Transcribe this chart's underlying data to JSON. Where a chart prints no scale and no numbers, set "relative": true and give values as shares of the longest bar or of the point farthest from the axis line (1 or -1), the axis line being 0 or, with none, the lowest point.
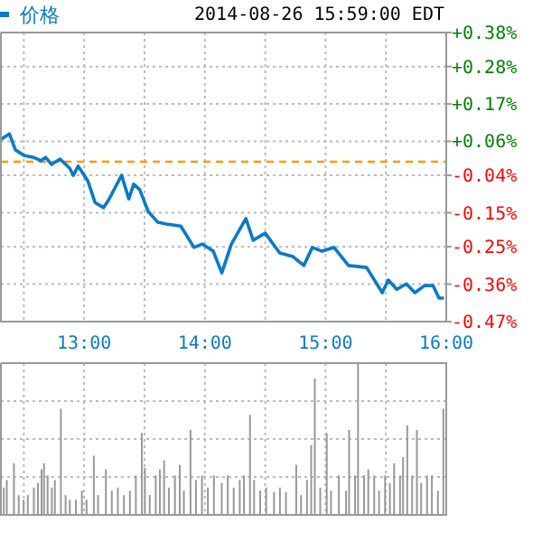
{
  "chart_data": [
    {
      "type": "line",
      "title": "2014-08-26 15:59:00 EDT",
      "legend": "top left",
      "grid": true,
      "series": [
        {
          "name": "价格",
          "color": "#0a7ac8",
          "x": [
            12.31,
            12.38,
            12.43,
            12.5,
            12.58,
            12.64,
            12.68,
            12.73,
            12.8,
            12.88,
            12.91,
            12.95,
            12.98,
            13.03,
            13.09,
            13.16,
            13.2,
            13.31,
            13.37,
            13.41,
            13.46,
            13.53,
            13.61,
            13.68,
            13.8,
            13.91,
            13.98,
            14.07,
            14.14,
            14.22,
            14.34,
            14.4,
            14.5,
            14.62,
            14.73,
            14.82,
            14.89,
            14.97,
            15.07,
            15.19,
            15.34,
            15.47,
            15.52,
            15.59,
            15.67,
            15.74,
            15.82,
            15.89,
            15.94,
            15.98
          ],
          "values": [
            0.066,
            0.082,
            0.035,
            0.019,
            0.013,
            0.003,
            0.013,
            -0.008,
            0.008,
            -0.019,
            -0.04,
            -0.013,
            -0.029,
            -0.056,
            -0.12,
            -0.135,
            -0.114,
            -0.04,
            -0.109,
            -0.066,
            -0.082,
            -0.146,
            -0.178,
            -0.183,
            -0.189,
            -0.252,
            -0.242,
            -0.263,
            -0.327,
            -0.242,
            -0.167,
            -0.231,
            -0.21,
            -0.268,
            -0.279,
            -0.305,
            -0.252,
            -0.263,
            -0.252,
            -0.305,
            -0.311,
            -0.385,
            -0.348,
            -0.375,
            -0.359,
            -0.385,
            -0.364,
            -0.364,
            -0.401,
            -0.401
          ]
        }
      ],
      "xlim": [
        12.31,
        16
      ],
      "xticks": [
        {
          "value": 12.5,
          "label": null
        },
        {
          "value": 13,
          "label": "13:00"
        },
        {
          "value": 13.5,
          "label": null
        },
        {
          "value": 14,
          "label": "14:00"
        },
        {
          "value": 14.5,
          "label": null
        },
        {
          "value": 15,
          "label": "15:00"
        },
        {
          "value": 15.5,
          "label": null
        },
        {
          "value": 16,
          "label": "16:00"
        }
      ],
      "ylim": [
        -0.47,
        0.38
      ],
      "yticks": [
        {
          "value": 0.38,
          "label": "+0.38%"
        },
        {
          "value": 0.28,
          "label": "+0.28%"
        },
        {
          "value": 0.17,
          "label": "+0.17%"
        },
        {
          "value": 0.06,
          "label": "+0.06%"
        },
        {
          "value": -0.04,
          "label": "-0.04%"
        },
        {
          "value": -0.15,
          "label": "-0.15%"
        },
        {
          "value": -0.25,
          "label": "-0.25%"
        },
        {
          "value": -0.36,
          "label": "-0.36%"
        },
        {
          "value": -0.47,
          "label": "-0.47%"
        }
      ],
      "ref_lines": [
        {
          "axis": "y",
          "value": 0,
          "color": "#ff9900",
          "line_style": "dashed"
        }
      ]
    },
    {
      "type": "bar",
      "relative": true,
      "grid": true,
      "tick_labels": false,
      "color": "#999999",
      "x": [
        12.334,
        12.359,
        12.418,
        12.458,
        12.498,
        12.533,
        12.583,
        12.617,
        12.647,
        12.667,
        12.697,
        12.732,
        12.757,
        12.807,
        12.846,
        12.881,
        12.931,
        12.981,
        13.02,
        13.08,
        13.115,
        13.18,
        13.229,
        13.279,
        13.329,
        13.379,
        13.428,
        13.478,
        13.503,
        13.543,
        13.593,
        13.627,
        13.662,
        13.702,
        13.752,
        13.792,
        13.826,
        13.881,
        13.926,
        13.976,
        14.025,
        14.075,
        14.14,
        14.19,
        14.239,
        14.289,
        14.324,
        14.374,
        14.408,
        14.458,
        14.508,
        14.573,
        14.622,
        14.672,
        14.757,
        14.797,
        14.846,
        14.881,
        14.911,
        14.956,
        15.01,
        15.045,
        15.11,
        15.17,
        15.195,
        15.244,
        15.269,
        15.319,
        15.354,
        15.403,
        15.443,
        15.493,
        15.533,
        15.568,
        15.617,
        15.642,
        15.677,
        15.717,
        15.757,
        15.792,
        15.841,
        15.881,
        15.931,
        15.976
      ],
      "values": [
        0.18,
        0.23,
        0.34,
        0.13,
        0.1,
        0.13,
        0.18,
        0.21,
        0.3,
        0.34,
        0.26,
        0.18,
        0.23,
        0.7,
        0.13,
        0.1,
        0.1,
        0.16,
        0.1,
        0.39,
        0.13,
        0.3,
        0.16,
        0.18,
        0.13,
        0.16,
        0.26,
        0.54,
        0.31,
        0.13,
        0.26,
        0.3,
        0.36,
        0.18,
        0.26,
        0.33,
        0.16,
        0.56,
        0.23,
        0.26,
        0.18,
        0.26,
        0.21,
        0.26,
        0.18,
        0.23,
        0.26,
        0.66,
        0.23,
        0.16,
        0.18,
        0.15,
        0.18,
        0.15,
        0.33,
        0.13,
        0.23,
        0.46,
        0.9,
        0.18,
        0.54,
        0.16,
        0.26,
        0.16,
        0.56,
        0.26,
        1,
        0.26,
        0.3,
        0.26,
        0.16,
        0.26,
        0.21,
        0.34,
        0.26,
        0.38,
        0.59,
        0.26,
        0.56,
        0.21,
        0.26,
        0.26,
        0.16,
        0.7
      ],
      "xlim": [
        12.31,
        16
      ],
      "xticks": [
        {
          "value": 12.5,
          "label": null
        },
        {
          "value": 13,
          "label": null
        },
        {
          "value": 13.5,
          "label": null
        },
        {
          "value": 14,
          "label": null
        },
        {
          "value": 14.5,
          "label": null
        },
        {
          "value": 15,
          "label": null
        },
        {
          "value": 15.5,
          "label": null
        },
        {
          "value": 16,
          "label": null
        }
      ]
    }
  ]
}
